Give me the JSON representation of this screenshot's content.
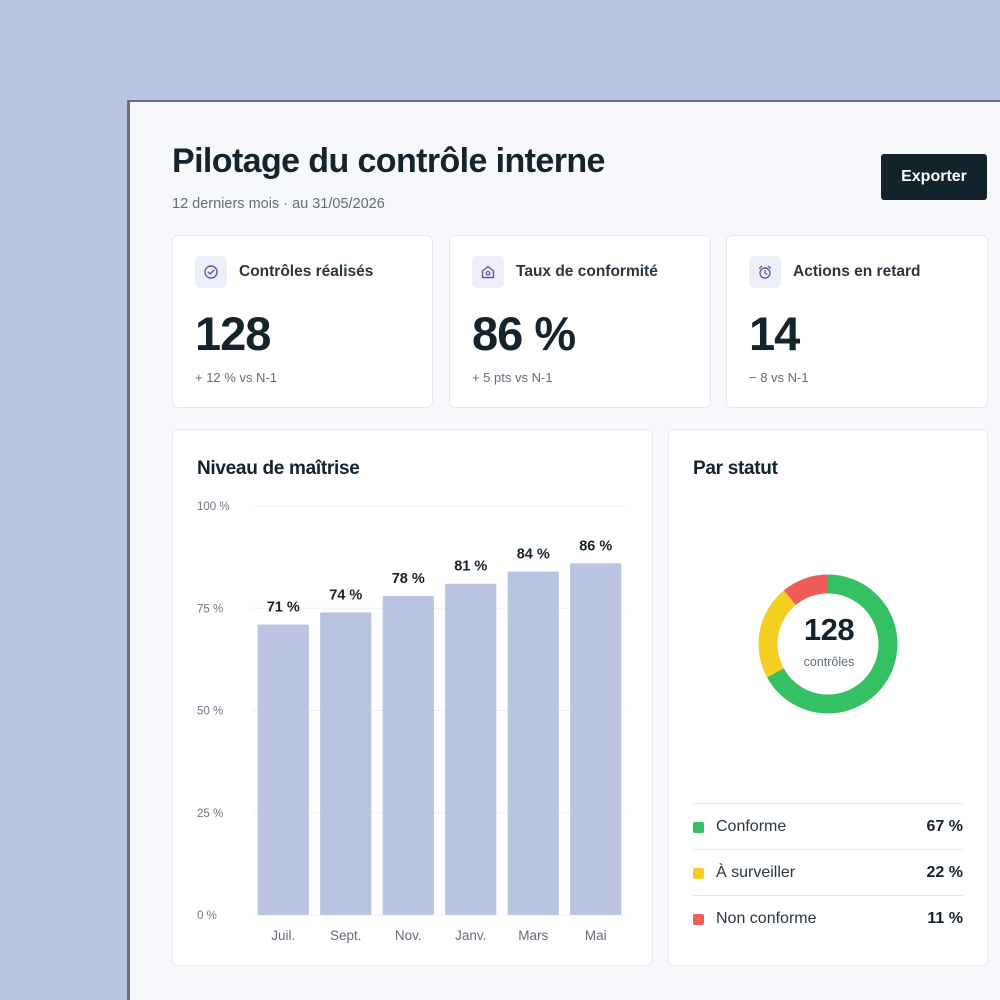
{
  "header": {
    "title": "Pilotage du contrôle interne",
    "subtitle": "12 derniers mois · au 31/05/2026",
    "export_label": "Exporter"
  },
  "kpis": [
    {
      "icon": "check-badge-icon",
      "label": "Contrôles réalisés",
      "value": "128",
      "delta": "+ 12 % vs N-1"
    },
    {
      "icon": "shield-home-icon",
      "label": "Taux de conformité",
      "value": "86 %",
      "delta": "+ 5 pts vs N-1"
    },
    {
      "icon": "alarm-clock-icon",
      "label": "Actions en retard",
      "value": "14",
      "delta": "− 8 vs N-1"
    }
  ],
  "mastery": {
    "title": "Niveau de maîtrise"
  },
  "status": {
    "title": "Par statut",
    "center_value": "128",
    "center_label": "contrôles",
    "items": [
      {
        "label": "Conforme",
        "pct": "67 %",
        "value": 67,
        "color": "#35c163"
      },
      {
        "label": "À surveiller",
        "pct": "22 %",
        "value": 22,
        "color": "#f2cf22"
      },
      {
        "label": "Non conforme",
        "pct": "11 %",
        "value": 11,
        "color": "#ee5d57"
      }
    ]
  },
  "chart_data": {
    "type": "bar",
    "categories": [
      "Juil.",
      "Sept.",
      "Nov.",
      "Janv.",
      "Mars",
      "Mai"
    ],
    "values": [
      71,
      74,
      78,
      81,
      84,
      86
    ],
    "value_labels": [
      "71 %",
      "74 %",
      "78 %",
      "81 %",
      "84 %",
      "86 %"
    ],
    "yticks": [
      "0 %",
      "25 %",
      "50 %",
      "75 %",
      "100 %"
    ],
    "ylim": [
      0,
      100
    ],
    "bar_color": "#bac4e1",
    "grid": true
  }
}
